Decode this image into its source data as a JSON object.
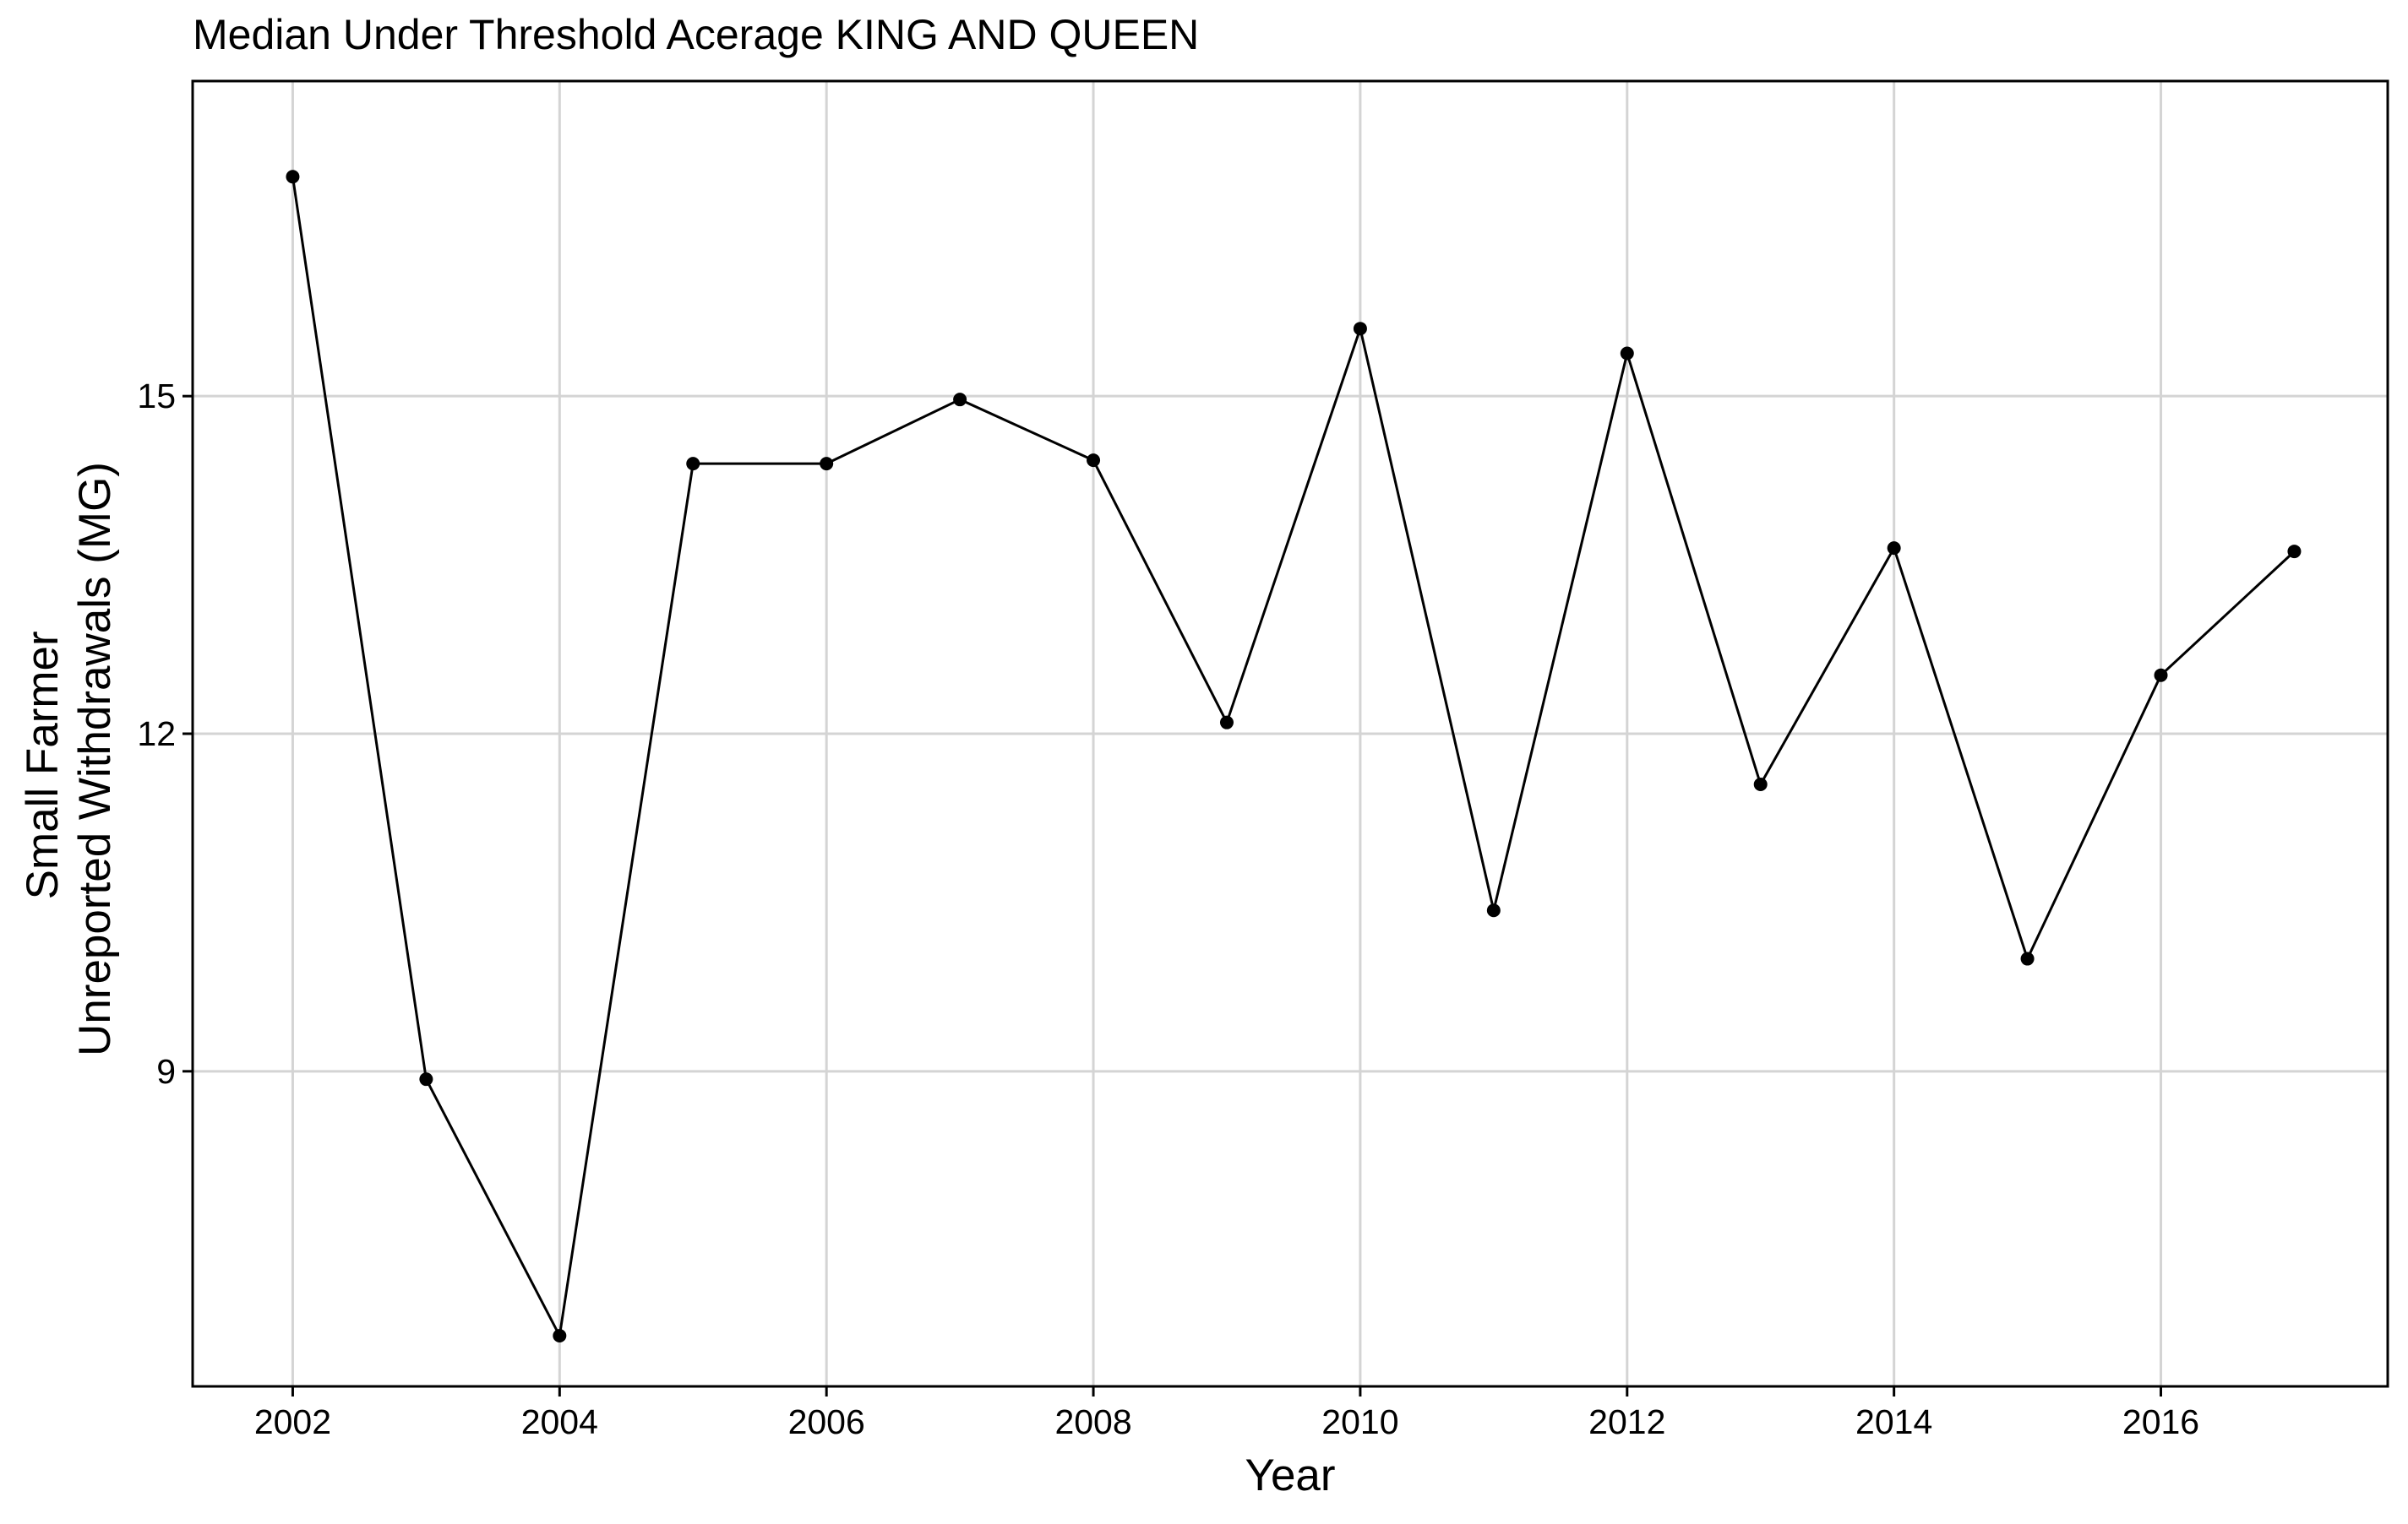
{
  "chart_data": {
    "type": "line",
    "title": "Median Under Threshold Acerage KING AND QUEEN",
    "xlabel": "Year",
    "ylabel_lines": [
      "Small Farmer",
      "Unreported Withdrawals (MG)"
    ],
    "x_ticks": [
      2002,
      2004,
      2006,
      2008,
      2010,
      2012,
      2014,
      2016
    ],
    "y_ticks": [
      9,
      12,
      15
    ],
    "xlim": [
      2001.25,
      2017.7
    ],
    "ylim": [
      6.2,
      17.8
    ],
    "grid": true,
    "series": [
      {
        "x": [
          2002,
          2003,
          2004,
          2005,
          2006,
          2007,
          2008,
          2009,
          2010,
          2011,
          2012,
          2013,
          2014,
          2015,
          2016,
          2017
        ],
        "y": [
          16.95,
          8.93,
          6.65,
          14.4,
          14.4,
          14.97,
          14.43,
          12.1,
          15.6,
          10.43,
          15.38,
          11.55,
          13.65,
          10.0,
          12.52,
          13.62
        ]
      }
    ]
  }
}
